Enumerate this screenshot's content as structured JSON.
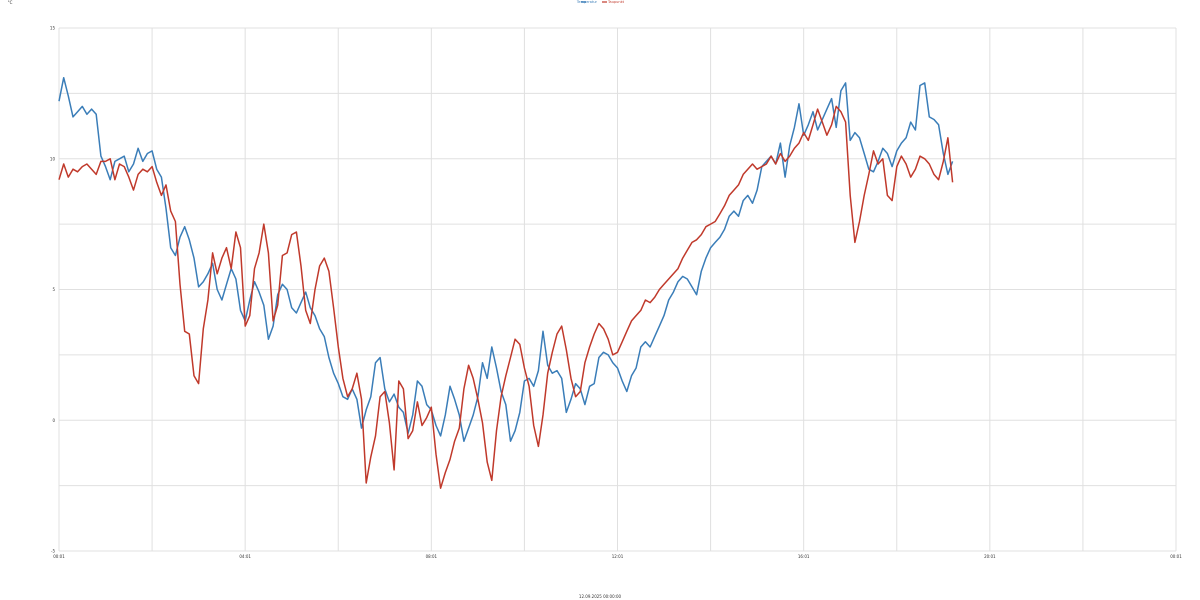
{
  "chart_data": {
    "type": "line",
    "title": "",
    "unit_label": "°C",
    "xlabel": "12.09.2025 00:00:00",
    "ylabel": "",
    "ylim": [
      -5,
      15
    ],
    "yticks": [
      -5,
      0,
      5,
      10,
      15
    ],
    "grid": true,
    "legend_position": "top-center",
    "x_min": 0,
    "x_max": 24,
    "xticks": [
      {
        "pos": 0,
        "label": "00:01"
      },
      {
        "pos": 4,
        "label": "04:01"
      },
      {
        "pos": 8,
        "label": "08:01"
      },
      {
        "pos": 12,
        "label": "12:01"
      },
      {
        "pos": 16,
        "label": "16:01"
      },
      {
        "pos": 20,
        "label": "20:01"
      },
      {
        "pos": 24,
        "label": "00:01"
      }
    ],
    "x_step_minutes": 6,
    "series": [
      {
        "name": "Temperatur",
        "color": "#3a7db8",
        "values": [
          12.2,
          13.1,
          12.4,
          11.6,
          11.8,
          12.0,
          11.7,
          11.9,
          11.7,
          10.1,
          9.7,
          9.2,
          9.9,
          10.0,
          10.1,
          9.5,
          9.8,
          10.4,
          9.9,
          10.2,
          10.3,
          9.6,
          9.3,
          8.1,
          6.6,
          6.3,
          7.0,
          7.4,
          6.9,
          6.2,
          5.1,
          5.3,
          5.6,
          6.0,
          5.0,
          4.6,
          5.2,
          5.8,
          5.4,
          4.2,
          3.8,
          4.6,
          5.3,
          4.9,
          4.4,
          3.1,
          3.6,
          4.8,
          5.2,
          5.0,
          4.3,
          4.1,
          4.5,
          4.9,
          4.3,
          4.0,
          3.5,
          3.2,
          2.4,
          1.8,
          1.4,
          0.9,
          0.8,
          1.2,
          0.8,
          -0.3,
          0.4,
          0.9,
          2.2,
          2.4,
          1.2,
          0.7,
          1.0,
          0.5,
          0.3,
          -0.5,
          0.2,
          1.5,
          1.3,
          0.6,
          0.4,
          -0.2,
          -0.6,
          0.2,
          1.3,
          0.8,
          0.2,
          -0.8,
          -0.3,
          0.2,
          0.9,
          2.2,
          1.6,
          2.8,
          2.0,
          1.1,
          0.6,
          -0.8,
          -0.4,
          0.3,
          1.5,
          1.6,
          1.3,
          1.9,
          3.4,
          2.1,
          1.8,
          1.9,
          1.6,
          0.3,
          0.8,
          1.4,
          1.2,
          0.6,
          1.3,
          1.4,
          2.4,
          2.6,
          2.5,
          2.2,
          2.0,
          1.5,
          1.1,
          1.7,
          2.0,
          2.8,
          3.0,
          2.8,
          3.2,
          3.6,
          4.0,
          4.6,
          4.9,
          5.3,
          5.5,
          5.4,
          5.1,
          4.8,
          5.7,
          6.2,
          6.6,
          6.8,
          7.0,
          7.3,
          7.8,
          8.0,
          7.8,
          8.4,
          8.6,
          8.3,
          8.8,
          9.7,
          9.9,
          10.1,
          9.8,
          10.6,
          9.3,
          10.5,
          11.2,
          12.1,
          10.9,
          11.3,
          11.8,
          11.1,
          11.5,
          11.9,
          12.3,
          11.2,
          12.6,
          12.9,
          10.7,
          11.0,
          10.8,
          10.2,
          9.6,
          9.5,
          9.9,
          10.4,
          10.2,
          9.7,
          10.3,
          10.6,
          10.8,
          11.4,
          11.1,
          12.8,
          12.9,
          11.6,
          11.5,
          11.3,
          10.2,
          9.4,
          9.9
        ]
      },
      {
        "name": "Taupunkt",
        "color": "#c0392b",
        "values": [
          9.2,
          9.8,
          9.3,
          9.6,
          9.5,
          9.7,
          9.8,
          9.6,
          9.4,
          9.9,
          9.9,
          10.0,
          9.2,
          9.8,
          9.7,
          9.3,
          8.8,
          9.4,
          9.6,
          9.5,
          9.7,
          9.1,
          8.6,
          9.0,
          8.0,
          7.6,
          5.2,
          3.4,
          3.3,
          1.7,
          1.4,
          3.5,
          4.6,
          6.4,
          5.6,
          6.2,
          6.6,
          5.8,
          7.2,
          6.6,
          3.6,
          4.0,
          5.8,
          6.4,
          7.5,
          6.4,
          3.8,
          4.4,
          6.3,
          6.4,
          7.1,
          7.2,
          5.9,
          4.2,
          3.7,
          5.0,
          5.9,
          6.2,
          5.7,
          4.3,
          2.8,
          1.6,
          0.9,
          1.2,
          1.8,
          0.8,
          -2.4,
          -1.4,
          -0.6,
          0.9,
          1.1,
          -0.1,
          -1.9,
          1.5,
          1.2,
          -0.7,
          -0.4,
          0.7,
          -0.2,
          0.1,
          0.5,
          -1.3,
          -2.6,
          -2.0,
          -1.5,
          -0.8,
          -0.3,
          1.2,
          2.1,
          1.6,
          0.8,
          -0.1,
          -1.6,
          -2.3,
          -0.4,
          0.9,
          1.7,
          2.4,
          3.1,
          2.9,
          2.0,
          1.3,
          -0.2,
          -1.0,
          0.2,
          1.8,
          2.6,
          3.3,
          3.6,
          2.7,
          1.6,
          0.9,
          1.1,
          2.2,
          2.8,
          3.3,
          3.7,
          3.5,
          3.1,
          2.5,
          2.6,
          3.0,
          3.4,
          3.8,
          4.0,
          4.2,
          4.6,
          4.5,
          4.7,
          5.0,
          5.2,
          5.4,
          5.6,
          5.8,
          6.2,
          6.5,
          6.8,
          6.9,
          7.1,
          7.4,
          7.5,
          7.6,
          7.9,
          8.2,
          8.6,
          8.8,
          9.0,
          9.4,
          9.6,
          9.8,
          9.6,
          9.7,
          9.8,
          10.1,
          9.8,
          10.2,
          9.9,
          10.1,
          10.4,
          10.6,
          11.0,
          10.7,
          11.3,
          11.9,
          11.4,
          10.9,
          11.3,
          12.0,
          11.8,
          11.4,
          8.6,
          6.8,
          7.6,
          8.6,
          9.4,
          10.3,
          9.8,
          10.0,
          8.6,
          8.4,
          9.7,
          10.1,
          9.8,
          9.3,
          9.6,
          10.1,
          10.0,
          9.8,
          9.4,
          9.2,
          9.9,
          10.8,
          9.1
        ]
      }
    ]
  }
}
